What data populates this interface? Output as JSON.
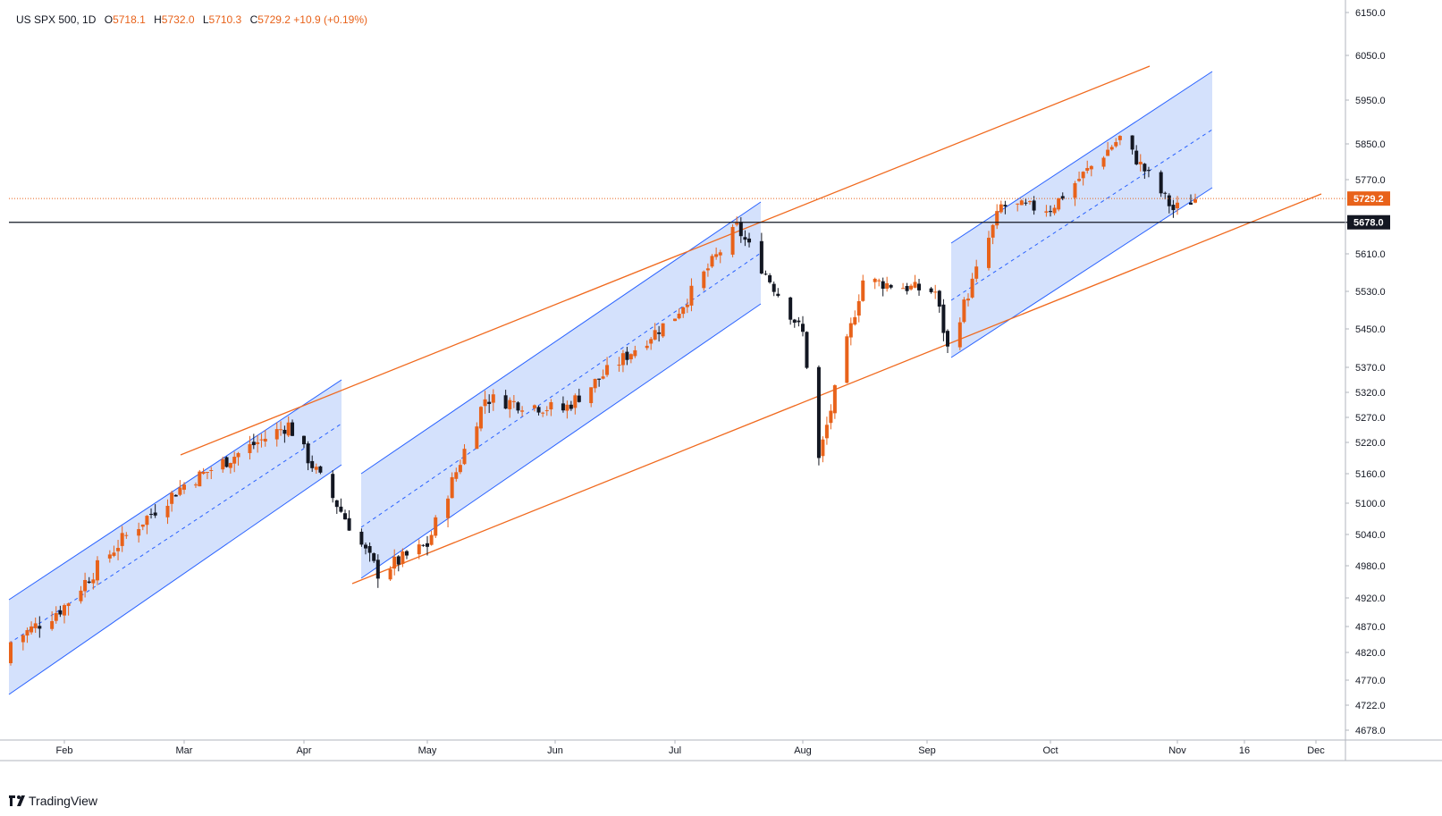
{
  "header": {
    "symbol": "US SPX 500, 1D",
    "o_label": "O",
    "o_value": "5718.1",
    "h_label": "H",
    "h_value": "5732.0",
    "l_label": "L",
    "l_value": "5710.3",
    "c_label": "C",
    "c_value": "5729.2",
    "change": "+10.9 (+0.19%)"
  },
  "brand": {
    "name": "TradingView",
    "icon": "tradingview-logo-icon"
  },
  "colors": {
    "up": "#e8621a",
    "down": "#131722",
    "channel_fill": "#ccdcfb",
    "channel_line": "#2962ff",
    "trendline": "#f06a1f",
    "support_line": "#131722"
  },
  "chart_data": {
    "type": "candlestick",
    "title": "US SPX 500, 1D",
    "y_ticks": [
      "6150.0",
      "6050.0",
      "5950.0",
      "5850.0",
      "5770.0",
      "5610.0",
      "5530.0",
      "5450.0",
      "5370.0",
      "5320.0",
      "5270.0",
      "5220.0",
      "5160.0",
      "5100.0",
      "5040.0",
      "4980.0",
      "4920.0",
      "4870.0",
      "4820.0",
      "4770.0",
      "4722.0",
      "4678.0"
    ],
    "y_range": [
      4660,
      6160
    ],
    "x_ticks": [
      "Feb",
      "Mar",
      "Apr",
      "May",
      "Jun",
      "Jul",
      "Aug",
      "Sep",
      "Oct",
      "Nov",
      "16",
      "Dec"
    ],
    "last_price": {
      "value": 5729.2,
      "label": "5729.2"
    },
    "horizontal_level": {
      "value": 5678.0,
      "label": "5678.0"
    },
    "candles_monthly_anchor_closes": [
      {
        "date": "Jan 19",
        "close": 4840
      },
      {
        "date": "Feb 1",
        "close": 4906
      },
      {
        "date": "Feb 15",
        "close": 5030
      },
      {
        "date": "Mar 1",
        "close": 5138
      },
      {
        "date": "Mar 28",
        "close": 5255
      },
      {
        "date": "Apr 19",
        "close": 4967
      },
      {
        "date": "May 1",
        "close": 5020
      },
      {
        "date": "May 15",
        "close": 5308
      },
      {
        "date": "Jun 3",
        "close": 5285
      },
      {
        "date": "Jul 1",
        "close": 5478
      },
      {
        "date": "Jul 16",
        "close": 5667
      },
      {
        "date": "Aug 1",
        "close": 5440
      },
      {
        "date": "Aug 5",
        "close": 5186
      },
      {
        "date": "Aug 16",
        "close": 5554
      },
      {
        "date": "Sep 3",
        "close": 5529
      },
      {
        "date": "Sep 6",
        "close": 5408
      },
      {
        "date": "Sep 19",
        "close": 5713
      },
      {
        "date": "Oct 1",
        "close": 5708
      },
      {
        "date": "Oct 18",
        "close": 5864
      },
      {
        "date": "Oct 31",
        "close": 5705
      },
      {
        "date": "Nov 5",
        "close": 5729
      }
    ]
  }
}
